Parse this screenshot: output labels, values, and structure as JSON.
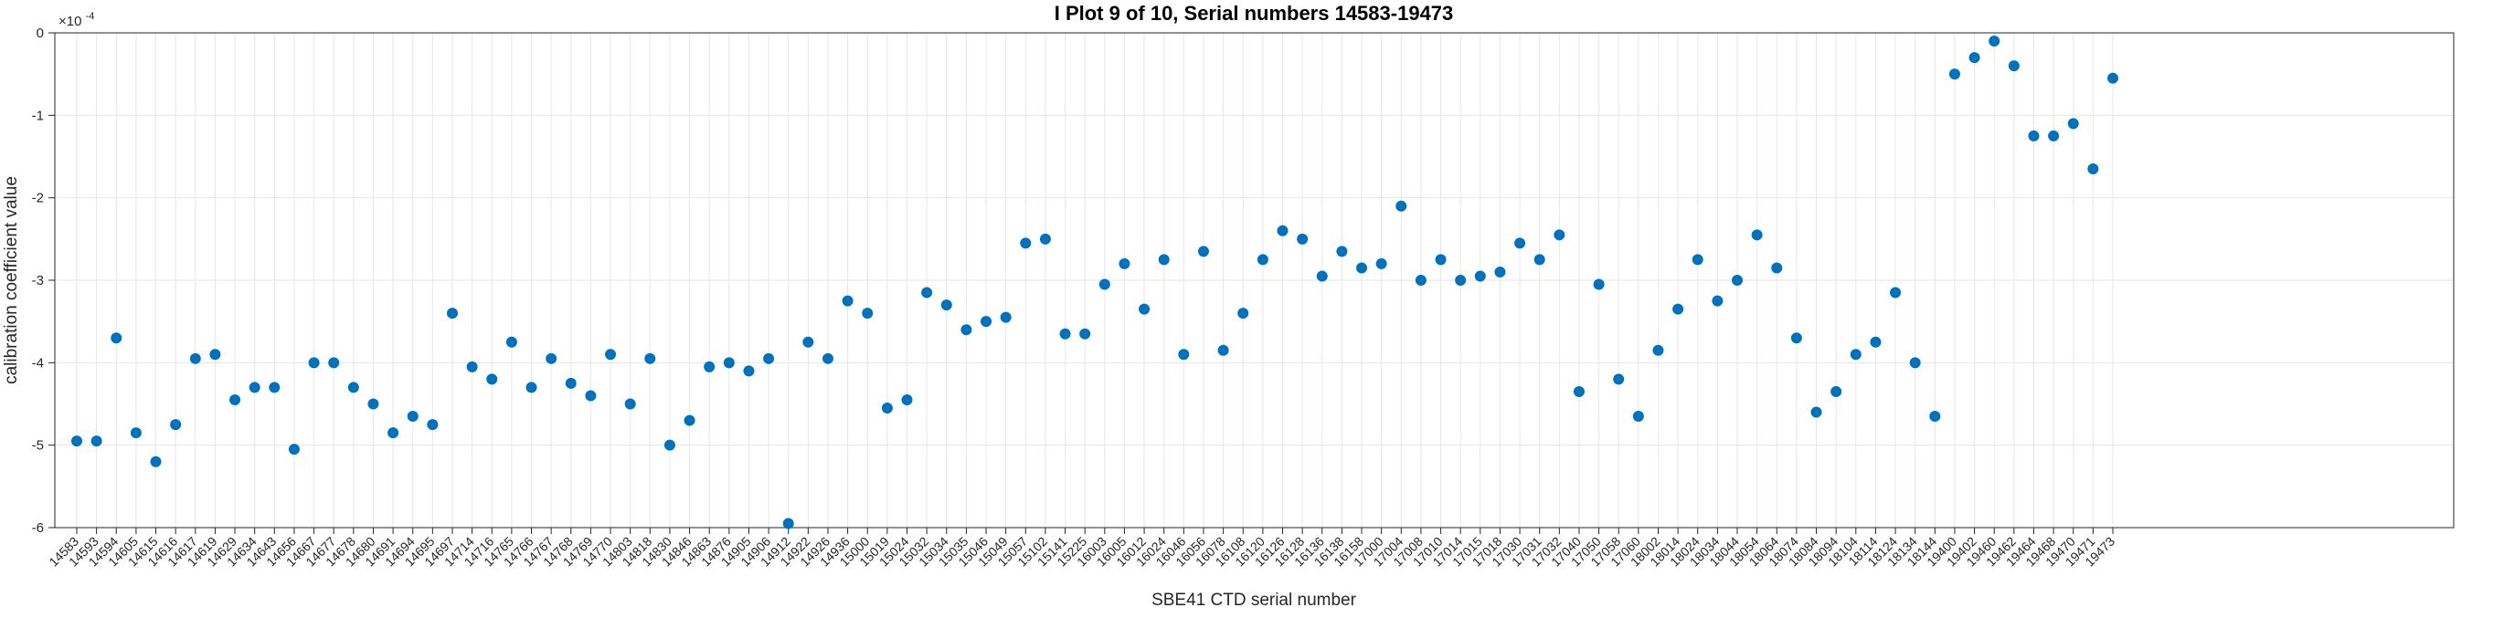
{
  "chart_data": {
    "type": "scatter",
    "title": "I Plot 9 of 10, Serial numbers 14583-19473",
    "xlabel": "SBE41 CTD serial number",
    "ylabel": "calibration coefficient value",
    "y_scale": {
      "base": "×10",
      "power": "-4"
    },
    "ylim": [
      -6,
      0
    ],
    "yticks": [
      0,
      -1,
      -2,
      -3,
      -4,
      -5,
      -6
    ],
    "grid": true,
    "legend": "none",
    "x_tick_rotation": 45,
    "marker": {
      "shape": "circle",
      "color": "#0072BD",
      "radius": 6
    },
    "colors": {
      "grid": "#e6e6e6",
      "axis": "#262626",
      "title": "#000000",
      "background": "#ffffff"
    },
    "categories": [
      "14583",
      "14593",
      "14594",
      "14605",
      "14615",
      "14616",
      "14617",
      "14619",
      "14629",
      "14634",
      "14643",
      "14656",
      "14667",
      "14677",
      "14678",
      "14680",
      "14691",
      "14694",
      "14695",
      "14697",
      "14714",
      "14716",
      "14765",
      "14766",
      "14767",
      "14768",
      "14769",
      "14770",
      "14803",
      "14818",
      "14830",
      "14846",
      "14863",
      "14876",
      "14905",
      "14906",
      "14912",
      "14922",
      "14926",
      "14936",
      "15000",
      "15019",
      "15024",
      "15032",
      "15034",
      "15035",
      "15046",
      "15049",
      "15057",
      "15102",
      "15141",
      "15225",
      "16003",
      "16005",
      "16012",
      "16024",
      "16046",
      "16056",
      "16078",
      "16108",
      "16120",
      "16126",
      "16128",
      "16136",
      "16138",
      "16158",
      "17000",
      "17004",
      "17008",
      "17010",
      "17014",
      "17015",
      "17018",
      "17030",
      "17031",
      "17032",
      "17040",
      "17050",
      "17058",
      "17060",
      "18002",
      "18014",
      "18024",
      "18034",
      "18044",
      "18054",
      "18064",
      "18074",
      "18084",
      "18094",
      "18104",
      "18114",
      "18124",
      "18134",
      "18144",
      "19400",
      "19402",
      "19460",
      "19462",
      "19464",
      "19468",
      "19470",
      "19471",
      "19473"
    ],
    "values": [
      -4.95,
      -4.95,
      -3.7,
      -4.85,
      -5.2,
      -4.75,
      -3.95,
      -3.9,
      -4.45,
      -4.3,
      -4.3,
      -5.05,
      -4.0,
      -4.0,
      -4.3,
      -4.5,
      -4.85,
      -4.65,
      -4.75,
      -3.4,
      -4.05,
      -4.2,
      -3.75,
      -4.3,
      -3.95,
      -4.25,
      -4.4,
      -3.9,
      -4.5,
      -3.95,
      -5.0,
      -4.7,
      -4.05,
      -4.0,
      -4.1,
      -3.95,
      -5.95,
      -3.75,
      -3.95,
      -3.25,
      -3.4,
      -4.55,
      -4.45,
      -3.15,
      -3.3,
      -3.6,
      -3.5,
      -3.45,
      -2.55,
      -2.5,
      -3.65,
      -3.65,
      -3.05,
      -2.8,
      -3.35,
      -2.75,
      -3.9,
      -2.65,
      -3.85,
      -3.4,
      -2.75,
      -2.4,
      -2.5,
      -2.95,
      -2.65,
      -2.85,
      -2.8,
      -2.1,
      -3.0,
      -2.75,
      -3.0,
      -2.95,
      -2.9,
      -2.55,
      -2.75,
      -2.45,
      -4.35,
      -3.05,
      -4.2,
      -4.65,
      -3.85,
      -3.35,
      -2.75,
      -3.25,
      -3.0,
      -2.45,
      -2.85,
      -3.7,
      -4.6,
      -4.35,
      -3.9,
      -3.75,
      -3.15,
      -4.0,
      -4.65,
      -0.5,
      -0.3,
      -0.1,
      -0.4,
      -1.25,
      -1.25,
      -1.1,
      -1.65,
      -0.55
    ]
  }
}
